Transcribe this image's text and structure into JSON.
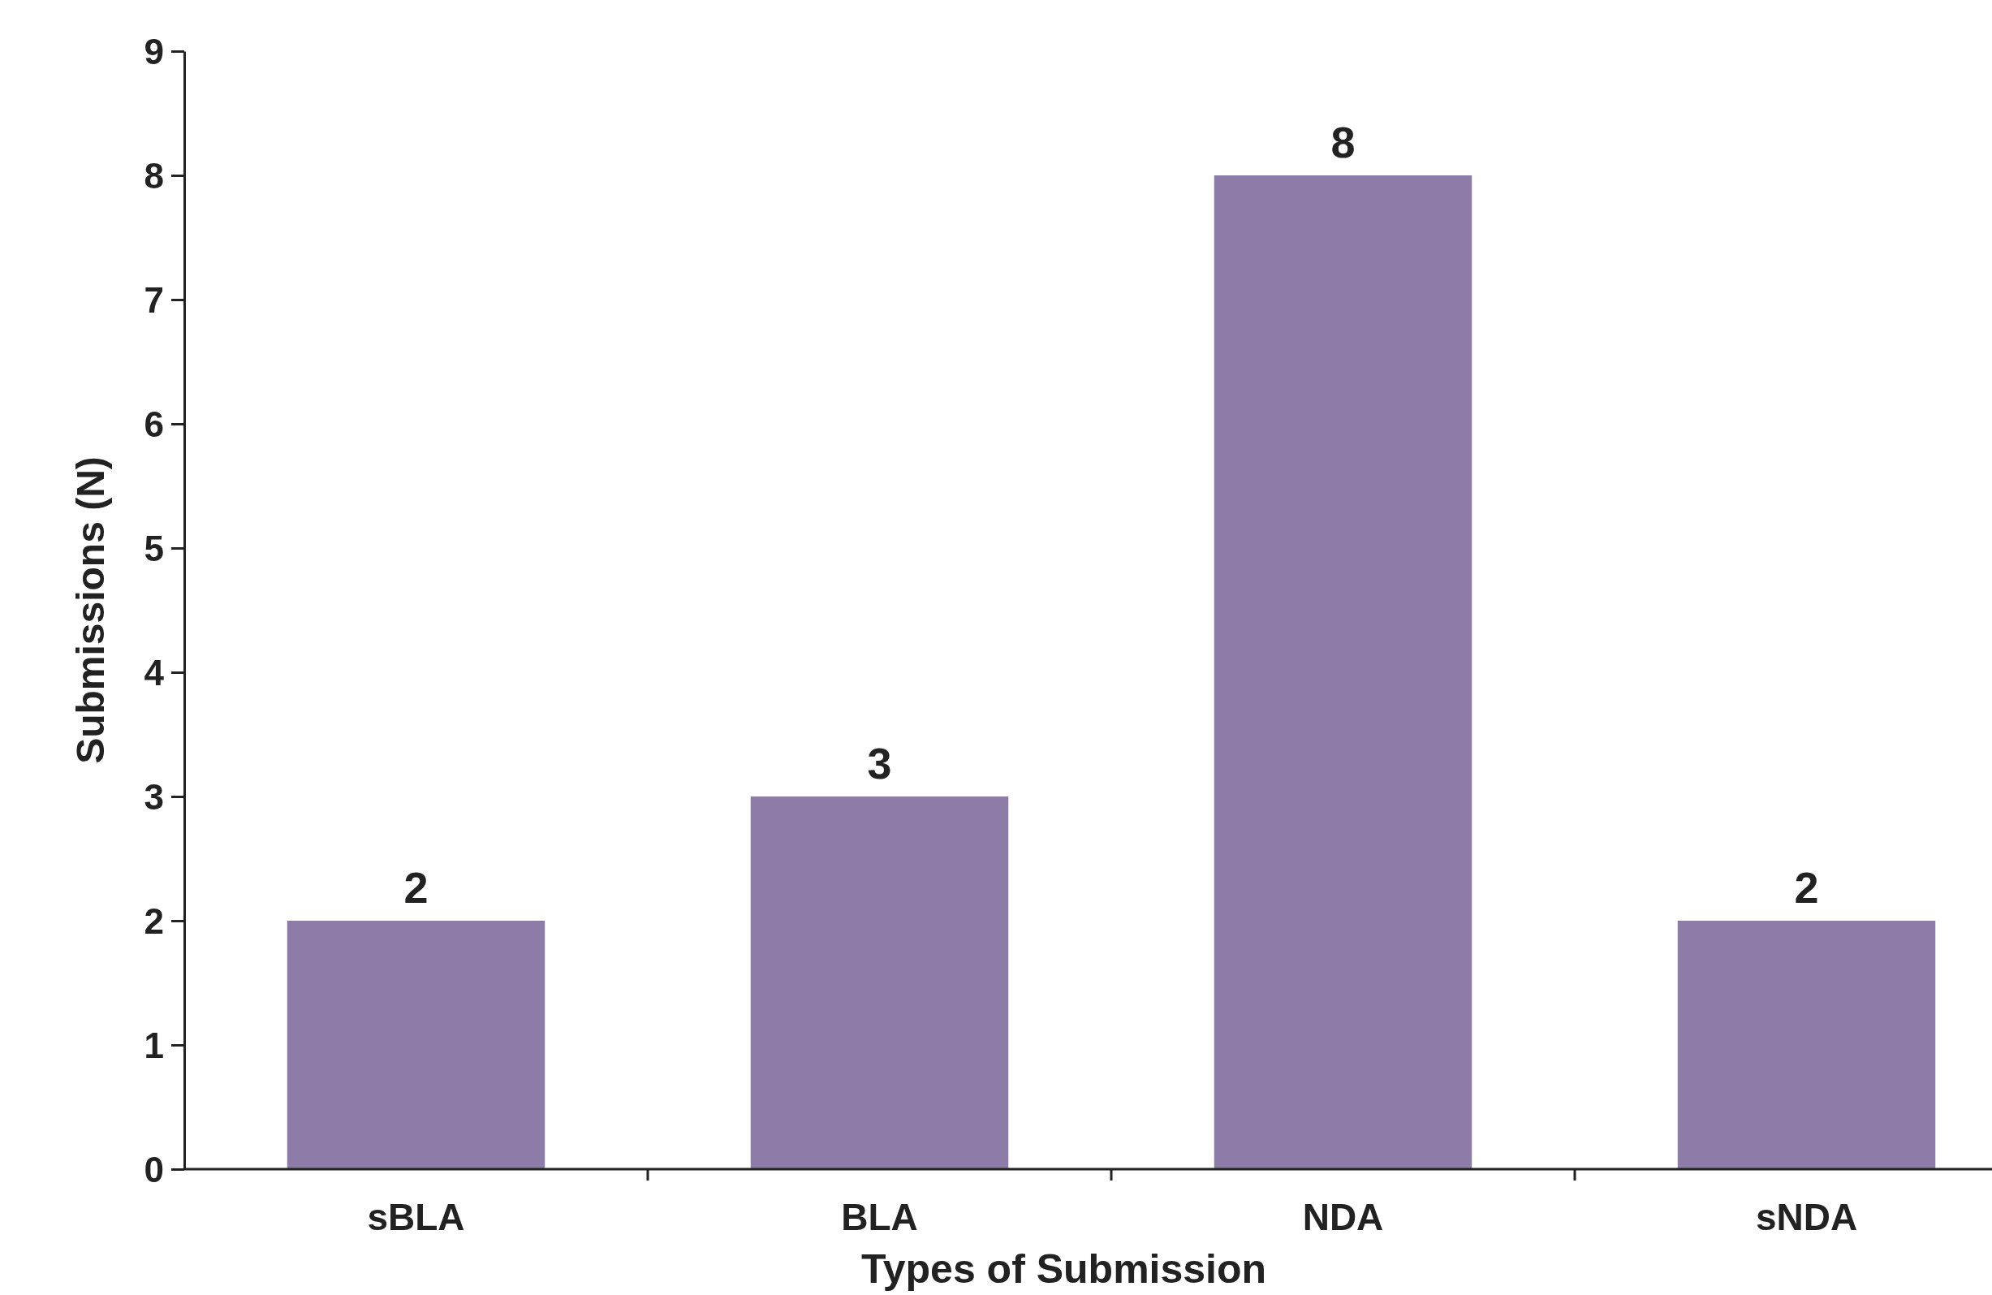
{
  "chart_data": {
    "type": "bar",
    "xlabel": "Types of Submission",
    "ylabel": "Submissions (N)",
    "categories": [
      "sBLA",
      "BLA",
      "NDA",
      "sNDA"
    ],
    "values": [
      2,
      3,
      8,
      2
    ],
    "color": "#8e7ca8",
    "ylim": [
      0,
      9
    ],
    "yticks": [
      0,
      1,
      2,
      3,
      4,
      5,
      6,
      7,
      8,
      9
    ],
    "data_labels": true
  }
}
